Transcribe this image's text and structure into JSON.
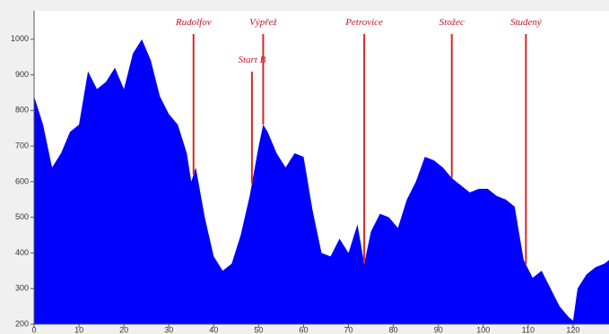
{
  "chart_data": {
    "type": "area",
    "color": "#0000ff",
    "marker_color": "#d42a2a",
    "x": [
      0,
      2,
      4,
      6,
      8,
      10,
      12,
      14,
      16,
      18,
      20,
      22,
      24,
      26,
      28,
      30,
      32,
      34,
      35,
      36,
      38,
      40,
      42,
      44,
      46,
      48,
      50,
      51,
      52,
      54,
      56,
      58,
      60,
      62,
      64,
      66,
      68,
      70,
      72,
      73.5,
      75,
      77,
      79,
      81,
      83,
      85,
      87,
      89,
      91,
      93,
      95,
      97,
      99,
      101,
      103,
      105,
      107,
      109,
      111,
      113,
      115,
      117,
      119,
      120,
      121,
      123,
      125,
      127,
      128
    ],
    "values": [
      840,
      760,
      640,
      680,
      740,
      760,
      910,
      860,
      880,
      920,
      860,
      960,
      1000,
      940,
      840,
      790,
      760,
      680,
      600,
      640,
      500,
      390,
      350,
      370,
      450,
      560,
      700,
      760,
      740,
      680,
      640,
      680,
      670,
      520,
      400,
      390,
      440,
      400,
      480,
      370,
      460,
      510,
      500,
      470,
      550,
      600,
      670,
      660,
      640,
      610,
      590,
      570,
      580,
      580,
      560,
      550,
      530,
      380,
      330,
      350,
      300,
      250,
      220,
      210,
      300,
      340,
      360,
      370,
      380
    ],
    "xlim": [
      0,
      128
    ],
    "ylim": [
      200,
      1080
    ],
    "xticks": [
      0,
      10,
      20,
      30,
      40,
      50,
      60,
      70,
      80,
      90,
      100,
      110,
      120
    ],
    "yticks": [
      200,
      300,
      400,
      500,
      600,
      700,
      800,
      900,
      1000
    ],
    "annotations": [
      {
        "label": "Rudolfov",
        "x": 35.5
      },
      {
        "label": "Start B",
        "x": 48.5
      },
      {
        "label": "Výpřež",
        "x": 51
      },
      {
        "label": "Petrovice",
        "x": 73.5
      },
      {
        "label": "Stožec",
        "x": 93
      },
      {
        "label": "Studený",
        "x": 109.5
      }
    ]
  }
}
